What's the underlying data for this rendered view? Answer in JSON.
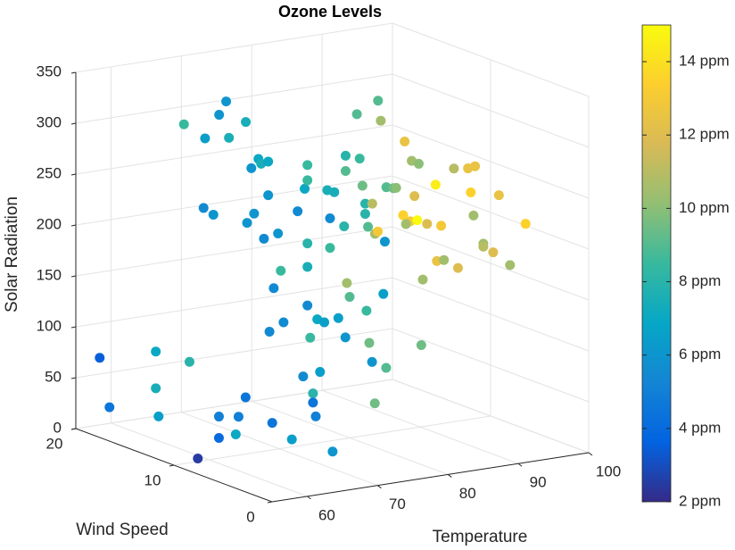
{
  "chart_data": {
    "type": "scatter3d",
    "title": "Ozone Levels",
    "xlabel": "Temperature",
    "ylabel": "Wind Speed",
    "zlabel": "Solar Radiation",
    "x": [
      57,
      57,
      58,
      58,
      57,
      60,
      62,
      65,
      67,
      68,
      67,
      68,
      62,
      62,
      66,
      67,
      66,
      67,
      67,
      64,
      65,
      65,
      67,
      65,
      66,
      63,
      65,
      68,
      67,
      67,
      67,
      67,
      67,
      67,
      67,
      68,
      66,
      66,
      65,
      65,
      64,
      65,
      65,
      62,
      62,
      61,
      60,
      60,
      61,
      60,
      57,
      71,
      72,
      74,
      73,
      71,
      70,
      74,
      75,
      73,
      74,
      73,
      75,
      73,
      77,
      78,
      78,
      77,
      78,
      78,
      79,
      75,
      78,
      78,
      80,
      74,
      81,
      84,
      83,
      81,
      82,
      81,
      79,
      85,
      86,
      87,
      85,
      88,
      82,
      83,
      84,
      81,
      84,
      86,
      82,
      84,
      85,
      87,
      79,
      92,
      94,
      95,
      93,
      97,
      92,
      98,
      92,
      92,
      92,
      93
    ],
    "y": [
      19,
      18,
      14,
      14,
      13,
      12,
      14,
      14,
      14,
      14,
      13,
      12,
      12,
      11,
      10,
      10,
      9,
      9,
      9,
      9,
      9,
      8,
      8,
      7,
      7,
      6,
      6,
      6,
      6,
      5,
      5,
      5,
      5,
      5,
      4,
      4,
      4,
      3,
      4,
      3,
      2,
      3,
      1,
      3,
      5,
      7,
      7,
      9,
      8,
      9,
      9,
      1,
      2,
      2,
      3,
      4,
      4,
      4,
      3,
      5,
      6,
      7,
      7,
      7,
      6,
      6,
      5,
      5,
      7,
      7,
      8,
      8,
      9,
      9,
      9,
      8,
      10,
      10,
      9,
      7,
      7,
      6,
      7,
      8,
      8,
      8,
      7,
      7,
      6,
      6,
      6,
      5,
      5,
      5,
      4,
      4,
      4,
      4,
      2,
      8,
      8,
      8,
      7,
      7,
      6,
      5,
      5,
      5,
      4,
      3
    ],
    "z": [
      71,
      26,
      94,
      58,
      35,
      89,
      313,
      296,
      317,
      329,
      298,
      316,
      238,
      235,
      280,
      288,
      288,
      289,
      256,
      232,
      240,
      219,
      222,
      174,
      190,
      137,
      144,
      272,
      251,
      300,
      285,
      223,
      200,
      162,
      152,
      148,
      135,
      105,
      98,
      85,
      67,
      76,
      35,
      43,
      52,
      71,
      53,
      46,
      31,
      25,
      8,
      76,
      112,
      104,
      126,
      130,
      150,
      153,
      172,
      164,
      173,
      205,
      224,
      234,
      225,
      217,
      213,
      224,
      233,
      243,
      256,
      254,
      268,
      283,
      278,
      257,
      317,
      327,
      312,
      256,
      254,
      259,
      242,
      293,
      273,
      269,
      243,
      251,
      231,
      224,
      224,
      227,
      224,
      220,
      175,
      191,
      191,
      181,
      121,
      259,
      257,
      258,
      238,
      231,
      220,
      209,
      196,
      193,
      191,
      181
    ],
    "c": [
      3.5,
      4.5,
      7,
      7.5,
      6.5,
      8,
      8.5,
      6.5,
      6,
      6,
      7.5,
      7.5,
      5.5,
      6,
      6,
      7,
      7.5,
      7,
      6,
      6,
      6,
      5.5,
      6,
      5.5,
      8.5,
      5.5,
      5.5,
      7,
      5.5,
      8.5,
      8.5,
      8,
      7.5,
      5.5,
      7,
      6.5,
      8.5,
      6.5,
      5.5,
      8,
      5,
      4.5,
      6,
      6.5,
      4.5,
      4.5,
      5,
      5,
      7,
      4,
      2.5,
      9.5,
      6,
      9,
      9.5,
      6,
      6.5,
      8.5,
      6.5,
      9,
      10.5,
      8.5,
      8,
      5.5,
      9,
      10.5,
      6,
      13,
      8,
      8,
      9.5,
      7.5,
      9,
      8,
      8.5,
      7.5,
      9,
      9,
      10.5,
      9,
      9.5,
      10,
      11,
      12.5,
      10.5,
      10,
      12,
      14.5,
      13.5,
      13,
      15,
      10.5,
      12,
      13,
      10.5,
      12.5,
      10.5,
      12,
      9.5,
      11,
      12.5,
      12.5,
      13.5,
      12.5,
      10.5,
      13.5,
      10.5,
      11,
      12,
      10.5
    ],
    "xlim": [
      55,
      100
    ],
    "xticks": [
      60,
      70,
      80,
      90,
      100
    ],
    "ylim": [
      0,
      20
    ],
    "yticks": [
      0,
      10,
      20
    ],
    "zlim": [
      0,
      350
    ],
    "zticks": [
      0,
      50,
      100,
      150,
      200,
      250,
      300,
      350
    ],
    "clim": [
      2,
      15
    ],
    "cticks": [
      {
        "value": 2,
        "label": "2 ppm"
      },
      {
        "value": 4,
        "label": "4 ppm"
      },
      {
        "value": 6,
        "label": "6 ppm"
      },
      {
        "value": 8,
        "label": "8 ppm"
      },
      {
        "value": 10,
        "label": "10 ppm"
      },
      {
        "value": 12,
        "label": "12 ppm"
      },
      {
        "value": 14,
        "label": "14 ppm"
      }
    ],
    "colormap": [
      "#352a87",
      "#0363e1",
      "#1485d4",
      "#06a7c6",
      "#38b99e",
      "#92bf73",
      "#d9ba56",
      "#fcce2e",
      "#f9fb0e"
    ],
    "grid": true
  }
}
